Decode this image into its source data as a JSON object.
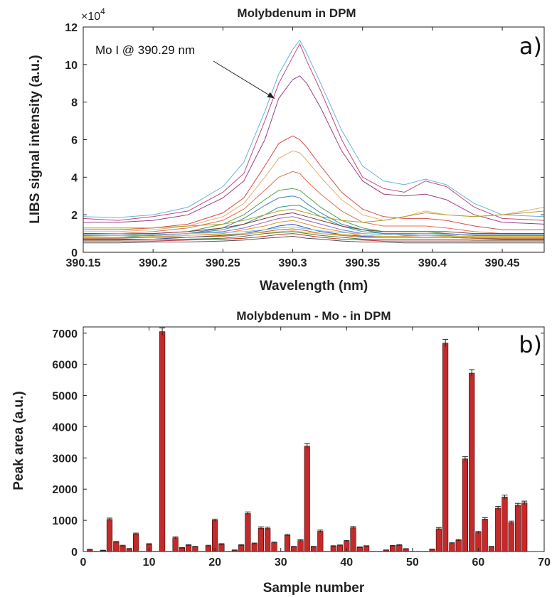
{
  "chart_data": [
    {
      "type": "line",
      "title": "Molybdenum in DPM",
      "xlabel": "Wavelength (nm)",
      "ylabel": "LIBS signal intensity (a.u.)",
      "y_exponent_label": "×10",
      "y_exponent_power": "4",
      "panel_label": "a)",
      "annotation": "Mo I @ 390.29 nm",
      "annotation_target": {
        "x": 390.287,
        "y": 8.2
      },
      "xlim": [
        390.15,
        390.48
      ],
      "ylim": [
        0,
        12
      ],
      "x_ticks": [
        390.15,
        390.2,
        390.25,
        390.3,
        390.35,
        390.4,
        390.45
      ],
      "x_tick_labels": [
        "390.15",
        "390.2",
        "390.25",
        "390.3",
        "390.35",
        "390.4",
        "390.45"
      ],
      "y_ticks": [
        0,
        2,
        4,
        6,
        8,
        10,
        12
      ],
      "y_tick_labels": [
        "0",
        "2",
        "4",
        "6",
        "8",
        "10",
        "12"
      ],
      "grid": false,
      "legend": "none",
      "x": [
        390.15,
        390.175,
        390.2,
        390.225,
        390.25,
        390.265,
        390.28,
        390.29,
        390.3,
        390.305,
        390.31,
        390.32,
        390.335,
        390.35,
        390.365,
        390.38,
        390.395,
        390.41,
        390.43,
        390.45,
        390.48
      ],
      "series": [
        {
          "color": "#6ab0e0",
          "values": [
            1.9,
            1.85,
            2.0,
            2.4,
            3.5,
            4.8,
            7.5,
            9.5,
            10.8,
            11.3,
            10.6,
            9.0,
            6.5,
            4.6,
            3.8,
            3.6,
            3.9,
            3.6,
            2.6,
            2.0,
            1.9
          ]
        },
        {
          "color": "#c04a78",
          "values": [
            1.8,
            1.7,
            1.9,
            2.2,
            3.2,
            4.2,
            7.0,
            9.0,
            10.4,
            11.1,
            10.2,
            8.6,
            6.0,
            4.0,
            3.4,
            3.2,
            3.8,
            3.5,
            2.4,
            1.8,
            1.7
          ]
        },
        {
          "color": "#9b3d86",
          "values": [
            1.6,
            1.6,
            1.7,
            2.0,
            2.9,
            3.8,
            6.0,
            8.2,
            9.2,
            9.4,
            9.0,
            7.7,
            5.4,
            3.8,
            3.1,
            3.0,
            3.1,
            2.8,
            2.0,
            1.6,
            1.5
          ]
        },
        {
          "color": "#d44a4a",
          "values": [
            1.2,
            1.2,
            1.3,
            1.5,
            2.1,
            2.9,
            4.6,
            5.8,
            6.2,
            6.0,
            5.6,
            4.6,
            3.2,
            2.3,
            1.9,
            1.8,
            1.8,
            1.7,
            1.4,
            1.2,
            1.2
          ]
        },
        {
          "color": "#e0b070",
          "values": [
            1.1,
            1.1,
            1.2,
            1.4,
            1.9,
            2.6,
            4.0,
            5.0,
            5.4,
            5.3,
            4.9,
            4.0,
            2.8,
            2.0,
            1.7,
            1.9,
            2.2,
            2.0,
            1.9,
            2.0,
            2.4
          ]
        },
        {
          "color": "#e07050",
          "values": [
            1.0,
            1.0,
            1.1,
            1.3,
            1.7,
            2.3,
            3.3,
            4.0,
            4.3,
            4.2,
            3.8,
            3.1,
            2.2,
            1.6,
            1.4,
            1.4,
            1.4,
            1.3,
            1.1,
            1.0,
            1.0
          ]
        },
        {
          "color": "#50a050",
          "values": [
            0.9,
            0.9,
            1.0,
            1.1,
            1.5,
            2.0,
            2.8,
            3.3,
            3.4,
            3.3,
            3.0,
            2.4,
            1.7,
            1.3,
            1.1,
            1.1,
            1.1,
            1.0,
            0.9,
            0.9,
            0.9
          ]
        },
        {
          "color": "#3c7fc0",
          "values": [
            0.9,
            0.9,
            0.9,
            1.0,
            1.3,
            1.8,
            2.5,
            2.9,
            3.0,
            2.9,
            2.6,
            2.1,
            1.5,
            1.2,
            1.0,
            1.0,
            1.0,
            1.0,
            0.9,
            0.9,
            0.9
          ]
        },
        {
          "color": "#2e9a8a",
          "values": [
            0.8,
            0.8,
            0.9,
            1.0,
            1.2,
            1.5,
            2.0,
            2.4,
            2.5,
            2.5,
            2.3,
            1.9,
            1.4,
            1.1,
            1.0,
            0.9,
            0.9,
            0.9,
            0.8,
            0.8,
            0.8
          ]
        },
        {
          "color": "#b0a030",
          "values": [
            1.3,
            1.3,
            1.3,
            1.4,
            1.5,
            1.7,
            2.0,
            2.2,
            2.3,
            2.2,
            2.1,
            1.9,
            1.7,
            1.6,
            1.7,
            1.9,
            2.1,
            2.0,
            1.9,
            2.0,
            2.2
          ]
        },
        {
          "color": "#7d3a3a",
          "values": [
            1.0,
            1.0,
            1.0,
            1.1,
            1.3,
            1.5,
            1.8,
            2.0,
            2.1,
            2.0,
            1.9,
            1.7,
            1.4,
            1.2,
            1.1,
            1.1,
            1.1,
            1.1,
            1.0,
            1.0,
            1.0
          ]
        },
        {
          "color": "#8a66c0",
          "values": [
            0.9,
            0.9,
            0.9,
            1.0,
            1.1,
            1.3,
            1.6,
            1.8,
            1.9,
            1.8,
            1.7,
            1.5,
            1.2,
            1.0,
            0.95,
            0.95,
            1.0,
            0.95,
            0.9,
            0.9,
            0.9
          ]
        },
        {
          "color": "#e09030",
          "values": [
            0.8,
            0.8,
            0.8,
            0.9,
            1.0,
            1.2,
            1.4,
            1.6,
            1.7,
            1.6,
            1.5,
            1.3,
            1.1,
            0.9,
            0.85,
            0.85,
            0.9,
            0.85,
            0.8,
            0.8,
            0.8
          ]
        },
        {
          "color": "#3050b0",
          "values": [
            0.7,
            0.7,
            0.7,
            0.8,
            0.9,
            1.0,
            1.2,
            1.4,
            1.5,
            1.4,
            1.3,
            1.1,
            0.95,
            0.85,
            0.8,
            0.8,
            0.8,
            0.8,
            0.75,
            0.7,
            0.7
          ]
        },
        {
          "color": "#c06030",
          "values": [
            0.75,
            0.75,
            0.8,
            0.8,
            0.85,
            0.95,
            1.1,
            1.2,
            1.25,
            1.2,
            1.15,
            1.0,
            0.9,
            0.8,
            0.8,
            0.8,
            0.8,
            0.8,
            0.75,
            0.75,
            0.75
          ]
        },
        {
          "color": "#408040",
          "values": [
            0.65,
            0.65,
            0.7,
            0.7,
            0.75,
            0.85,
            1.0,
            1.05,
            1.1,
            1.05,
            1.0,
            0.9,
            0.8,
            0.7,
            0.7,
            0.7,
            0.7,
            0.7,
            0.65,
            0.65,
            0.65
          ]
        },
        {
          "color": "#c03030",
          "values": [
            0.6,
            0.6,
            0.6,
            0.65,
            0.7,
            0.75,
            0.85,
            0.95,
            1.0,
            0.95,
            0.9,
            0.8,
            0.7,
            0.65,
            0.6,
            0.6,
            0.6,
            0.6,
            0.6,
            0.6,
            0.6
          ]
        },
        {
          "color": "#505050",
          "values": [
            0.5,
            0.5,
            0.55,
            0.55,
            0.6,
            0.65,
            0.75,
            0.8,
            0.85,
            0.8,
            0.75,
            0.7,
            0.6,
            0.55,
            0.55,
            0.5,
            0.5,
            0.5,
            0.5,
            0.5,
            0.5
          ]
        },
        {
          "color": "#80c0e0",
          "values": [
            0.95,
            1.0,
            0.95,
            1.0,
            1.05,
            1.1,
            1.2,
            1.3,
            1.35,
            1.3,
            1.25,
            1.15,
            1.05,
            1.0,
            0.95,
            0.95,
            1.0,
            0.95,
            0.95,
            0.95,
            0.95
          ]
        },
        {
          "color": "#e0c040",
          "values": [
            0.85,
            0.9,
            0.85,
            0.9,
            0.95,
            1.0,
            1.05,
            1.1,
            1.15,
            1.1,
            1.05,
            1.0,
            0.95,
            0.9,
            0.85,
            0.85,
            0.9,
            0.85,
            0.85,
            0.85,
            0.85
          ]
        }
      ]
    },
    {
      "type": "bar",
      "title": "Molybdenum - Mo - in DPM",
      "xlabel": "Sample number",
      "ylabel": "Peak area (a.u.)",
      "panel_label": "b)",
      "xlim": [
        0,
        70
      ],
      "ylim": [
        0,
        7200
      ],
      "x_ticks": [
        0,
        10,
        20,
        30,
        40,
        50,
        60,
        70
      ],
      "x_tick_labels": [
        "0",
        "10",
        "20",
        "30",
        "40",
        "50",
        "60",
        "70"
      ],
      "y_ticks": [
        0,
        1000,
        2000,
        3000,
        4000,
        5000,
        6000,
        7000
      ],
      "y_tick_labels": [
        "0",
        "1000",
        "2000",
        "3000",
        "4000",
        "5000",
        "6000",
        "7000"
      ],
      "grid": false,
      "legend": "none",
      "bar_color": "#c42a2a",
      "error_bars": true,
      "x": [
        1,
        2,
        3,
        4,
        5,
        6,
        7,
        8,
        9,
        10,
        11,
        12,
        13,
        14,
        15,
        16,
        17,
        18,
        19,
        20,
        21,
        22,
        23,
        24,
        25,
        26,
        27,
        28,
        29,
        30,
        31,
        32,
        33,
        34,
        35,
        36,
        37,
        38,
        39,
        40,
        41,
        42,
        43,
        44,
        45,
        46,
        47,
        48,
        49,
        50,
        51,
        52,
        53,
        54,
        55,
        56,
        57,
        58,
        59,
        60,
        61,
        62,
        63,
        64,
        65,
        66,
        67
      ],
      "values": [
        50,
        10,
        30,
        1030,
        300,
        180,
        80,
        560,
        10,
        230,
        10,
        7050,
        10,
        440,
        110,
        200,
        150,
        10,
        180,
        1000,
        230,
        10,
        40,
        200,
        1220,
        250,
        750,
        740,
        280,
        10,
        520,
        150,
        350,
        3380,
        150,
        650,
        10,
        170,
        190,
        330,
        760,
        130,
        170,
        10,
        10,
        40,
        180,
        200,
        80,
        10,
        10,
        10,
        70,
        730,
        6680,
        260,
        360,
        2970,
        5720,
        610,
        1040,
        150,
        1390,
        1750,
        930,
        1490,
        1560
      ],
      "errors": [
        20,
        0,
        10,
        40,
        20,
        20,
        15,
        30,
        0,
        20,
        0,
        120,
        0,
        30,
        15,
        20,
        15,
        0,
        20,
        40,
        20,
        0,
        10,
        20,
        50,
        20,
        40,
        40,
        20,
        0,
        30,
        15,
        25,
        80,
        15,
        35,
        0,
        15,
        20,
        25,
        40,
        15,
        15,
        0,
        0,
        10,
        15,
        20,
        10,
        0,
        0,
        0,
        10,
        40,
        120,
        20,
        25,
        70,
        110,
        35,
        45,
        15,
        55,
        60,
        45,
        55,
        55
      ]
    }
  ]
}
